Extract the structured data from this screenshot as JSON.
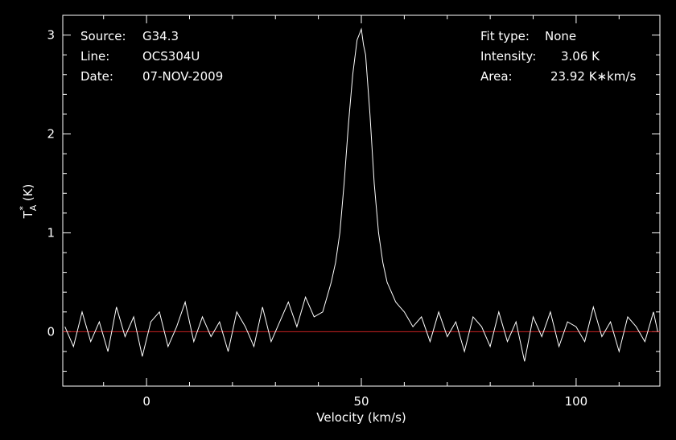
{
  "header": {
    "left": [
      {
        "key": "Source:",
        "value": "G34.3"
      },
      {
        "key": "Line:",
        "value": "OCS304U"
      },
      {
        "key": "Date:",
        "value": "07-NOV-2009"
      }
    ],
    "right": [
      {
        "key": "Fit type:",
        "value": "None"
      },
      {
        "key": "Intensity:",
        "value": "3.06 K"
      },
      {
        "key": "Area:",
        "value": "23.92 K∗km/s"
      }
    ]
  },
  "colors": {
    "background": "#000000",
    "spectrum": "#ffffff",
    "baseline": "#cc2222",
    "axes": "#ffffff"
  },
  "chart_data": {
    "type": "line",
    "title": "",
    "xlabel": "Velocity (km/s)",
    "ylabel_main": "T",
    "ylabel_sub": "A",
    "ylabel_sup": "*",
    "ylabel_unit": "(K)",
    "xlim": [
      -19.5,
      119.5
    ],
    "ylim": [
      -0.55,
      3.2
    ],
    "x_ticks": [
      0,
      50,
      100
    ],
    "y_ticks": [
      0,
      1,
      2,
      3
    ],
    "x_tick_labels": [
      "0",
      "50",
      "100"
    ],
    "y_tick_labels": [
      "0",
      "1",
      "2",
      "3"
    ],
    "grid": false,
    "baseline_y": 0,
    "series": [
      {
        "x": [
          -19,
          -17,
          -15,
          -13,
          -11,
          -9,
          -7,
          -5,
          -3,
          -1,
          1,
          3,
          5,
          7,
          9,
          11,
          13,
          15,
          17,
          19,
          21,
          23,
          25,
          27,
          29,
          31,
          33,
          35,
          37,
          39,
          41,
          42,
          43,
          44,
          45,
          46,
          47,
          48,
          49,
          50,
          50.5,
          51,
          52,
          53,
          54,
          55,
          56,
          57,
          58,
          59,
          60,
          62,
          64,
          66,
          68,
          70,
          72,
          74,
          76,
          78,
          80,
          82,
          84,
          86,
          88,
          90,
          92,
          94,
          96,
          98,
          100,
          102,
          104,
          106,
          108,
          110,
          112,
          114,
          116,
          118,
          119
        ],
        "y": [
          0.05,
          -0.15,
          0.2,
          -0.1,
          0.1,
          -0.2,
          0.25,
          -0.05,
          0.15,
          -0.25,
          0.1,
          0.2,
          -0.15,
          0.05,
          0.3,
          -0.1,
          0.15,
          -0.05,
          0.1,
          -0.2,
          0.2,
          0.05,
          -0.15,
          0.25,
          -0.1,
          0.1,
          0.3,
          0.05,
          0.35,
          0.15,
          0.2,
          0.35,
          0.5,
          0.7,
          1.0,
          1.5,
          2.1,
          2.6,
          2.95,
          3.06,
          2.9,
          2.8,
          2.2,
          1.5,
          1.0,
          0.7,
          0.5,
          0.4,
          0.3,
          0.25,
          0.2,
          0.05,
          0.15,
          -0.1,
          0.2,
          -0.05,
          0.1,
          -0.2,
          0.15,
          0.05,
          -0.15,
          0.2,
          -0.1,
          0.1,
          -0.3,
          0.15,
          -0.05,
          0.2,
          -0.15,
          0.1,
          0.05,
          -0.1,
          0.25,
          -0.05,
          0.1,
          -0.2,
          0.15,
          0.05,
          -0.1,
          0.2,
          0.0
        ]
      }
    ]
  }
}
